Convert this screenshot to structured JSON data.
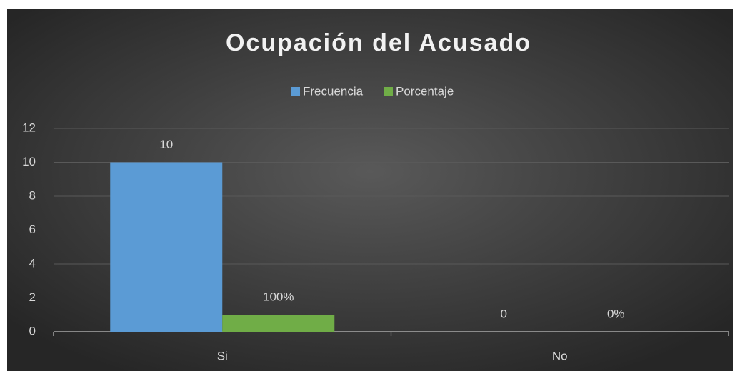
{
  "chart_data": {
    "type": "bar",
    "title": "Ocupación del Acusado",
    "categories": [
      "Si",
      "No"
    ],
    "series": [
      {
        "name": "Frecuencia",
        "color": "#5b9bd5",
        "values": [
          10,
          0
        ]
      },
      {
        "name": "Porcentaje",
        "color": "#70ad47",
        "values": [
          1,
          0
        ],
        "value_labels": [
          "100%",
          "0%"
        ]
      }
    ],
    "ylim": [
      0,
      12
    ],
    "yticks": [
      0,
      2,
      4,
      6,
      8,
      10,
      12
    ],
    "grid": true,
    "legend": "top"
  }
}
